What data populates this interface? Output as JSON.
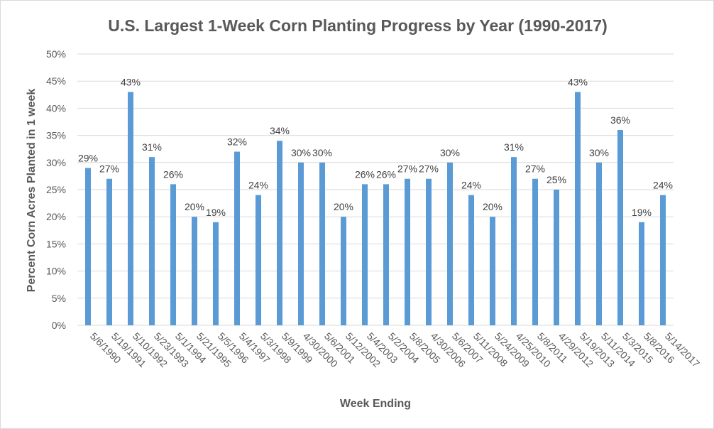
{
  "chart_data": {
    "type": "bar",
    "title": "U.S. Largest 1-Week Corn Planting Progress by Year (1990-2017)",
    "xlabel": "Week Ending",
    "ylabel": "Percent Corn Acres Planted in 1 week",
    "ylim": [
      0,
      50
    ],
    "yticks": [
      "0%",
      "5%",
      "10%",
      "15%",
      "20%",
      "25%",
      "30%",
      "35%",
      "40%",
      "45%",
      "50%"
    ],
    "grid": true,
    "bar_color": "#5b9bd5",
    "categories": [
      "5/6/1990",
      "5/19/1991",
      "5/10/1992",
      "5/23/1993",
      "5/1/1994",
      "5/21/1995",
      "5/5/1996",
      "5/4/1997",
      "5/3/1998",
      "5/9/1999",
      "4/30/2000",
      "5/6/2001",
      "5/12/2002",
      "5/4/2003",
      "5/2/2004",
      "5/8/2005",
      "4/30/2006",
      "5/6/2007",
      "5/11/2008",
      "5/24/2009",
      "4/25/2010",
      "5/8/2011",
      "4/29/2012",
      "5/19/2013",
      "5/11/2014",
      "5/3/2015",
      "5/8/2016",
      "5/14/2017"
    ],
    "values": [
      29,
      27,
      43,
      31,
      26,
      20,
      19,
      32,
      24,
      34,
      30,
      30,
      20,
      26,
      26,
      27,
      27,
      30,
      24,
      20,
      31,
      27,
      25,
      43,
      30,
      36,
      19,
      24
    ],
    "data_labels": [
      "29%",
      "27%",
      "43%",
      "31%",
      "26%",
      "20%",
      "19%",
      "32%",
      "24%",
      "34%",
      "30%",
      "30%",
      "20%",
      "26%",
      "26%",
      "27%",
      "27%",
      "30%",
      "24%",
      "20%",
      "31%",
      "27%",
      "25%",
      "43%",
      "30%",
      "36%",
      "19%",
      "24%"
    ]
  }
}
